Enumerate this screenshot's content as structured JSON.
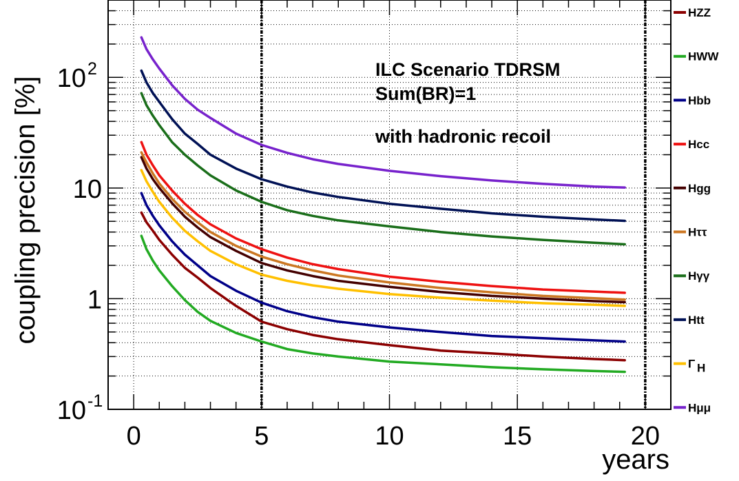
{
  "chart_data": {
    "type": "line",
    "ylabel": "coupling precision [%]",
    "xlabel": "years",
    "xlim": [
      -1,
      21
    ],
    "ylim": [
      0.1,
      500
    ],
    "yscale": "log",
    "grid": true,
    "legend_placement": "right-outside",
    "annotations": [
      "ILC Scenario TDRSM",
      "Sum(BR)=1",
      "with hadronic recoil"
    ],
    "xticks": [
      {
        "value": 0,
        "label": "0"
      },
      {
        "value": 5,
        "label": "5"
      },
      {
        "value": 10,
        "label": "10"
      },
      {
        "value": 15,
        "label": "15"
      },
      {
        "value": 20,
        "label": "20"
      }
    ],
    "yticks": [
      {
        "value": 0.1,
        "base": "10",
        "exp": "-1"
      },
      {
        "value": 1,
        "base": "1",
        "exp": ""
      },
      {
        "value": 10,
        "base": "10",
        "exp": ""
      },
      {
        "value": 100,
        "base": "10",
        "exp": "2"
      }
    ],
    "vlines": [
      5,
      20
    ],
    "x": [
      0.3,
      0.5,
      0.75,
      1,
      1.5,
      2,
      2.5,
      3,
      4,
      5,
      6,
      7,
      8,
      10,
      12,
      14,
      16,
      18,
      19.2
    ],
    "series": [
      {
        "name": "HZZ",
        "legend_sub": "",
        "color": "#8B0000",
        "values": [
          6,
          4.9,
          4.1,
          3.4,
          2.5,
          1.9,
          1.55,
          1.25,
          0.86,
          0.62,
          0.53,
          0.47,
          0.43,
          0.38,
          0.34,
          0.32,
          0.3,
          0.285,
          0.278
        ]
      },
      {
        "name": "HWW",
        "legend_sub": "",
        "color": "#22AA22",
        "values": [
          3.7,
          2.8,
          2.2,
          1.8,
          1.3,
          0.97,
          0.76,
          0.63,
          0.49,
          0.41,
          0.35,
          0.32,
          0.3,
          0.27,
          0.255,
          0.24,
          0.23,
          0.222,
          0.218
        ]
      },
      {
        "name": "Hbb",
        "legend_sub": "",
        "color": "#000088",
        "values": [
          9,
          7,
          5.6,
          4.6,
          3.3,
          2.5,
          2.0,
          1.6,
          1.18,
          0.92,
          0.77,
          0.68,
          0.62,
          0.55,
          0.5,
          0.46,
          0.44,
          0.42,
          0.41
        ]
      },
      {
        "name": "Hcc",
        "legend_sub": "",
        "color": "#EE1111",
        "values": [
          26,
          20,
          16,
          13,
          9.5,
          7.2,
          5.7,
          4.7,
          3.5,
          2.8,
          2.35,
          2.05,
          1.85,
          1.58,
          1.42,
          1.3,
          1.21,
          1.16,
          1.13
        ]
      },
      {
        "name": "Hgg",
        "legend_sub": "",
        "color": "#440000",
        "values": [
          19,
          15,
          12,
          10,
          7.3,
          5.5,
          4.4,
          3.6,
          2.7,
          2.1,
          1.8,
          1.6,
          1.45,
          1.28,
          1.15,
          1.06,
          1.0,
          0.95,
          0.93
        ]
      },
      {
        "name": "Hττ",
        "legend_sub": "",
        "color": "#CC7722",
        "values": [
          21,
          17,
          13.5,
          11,
          8,
          6.1,
          4.9,
          4.0,
          3.0,
          2.4,
          2.05,
          1.8,
          1.62,
          1.4,
          1.25,
          1.14,
          1.06,
          1.01,
          0.98
        ]
      },
      {
        "name": "Hγγ",
        "legend_sub": "",
        "color": "#1A6E1A",
        "values": [
          72,
          56,
          45,
          37,
          26,
          20,
          16,
          13,
          9.5,
          7.5,
          6.3,
          5.6,
          5.1,
          4.5,
          4.0,
          3.65,
          3.4,
          3.2,
          3.1
        ]
      },
      {
        "name": "Htt",
        "legend_sub": "",
        "color": "#001155",
        "values": [
          115,
          90,
          72,
          60,
          42,
          31,
          25,
          20,
          15,
          12,
          10.3,
          9.1,
          8.3,
          7.2,
          6.5,
          5.9,
          5.5,
          5.2,
          5.05
        ]
      },
      {
        "name": "Γ",
        "legend_sub": "H",
        "color": "#FFC000",
        "values": [
          14.5,
          11.5,
          9.2,
          7.5,
          5.4,
          4.1,
          3.3,
          2.7,
          2.05,
          1.65,
          1.45,
          1.32,
          1.23,
          1.1,
          1.02,
          0.96,
          0.91,
          0.88,
          0.86
        ]
      },
      {
        "name": "Hμμ",
        "legend_sub": "",
        "color": "#7722CC",
        "values": [
          230,
          180,
          145,
          120,
          85,
          64,
          51,
          43,
          31,
          24.5,
          20.8,
          18.2,
          16.5,
          14.3,
          12.8,
          11.7,
          10.9,
          10.3,
          10.1
        ]
      }
    ]
  }
}
